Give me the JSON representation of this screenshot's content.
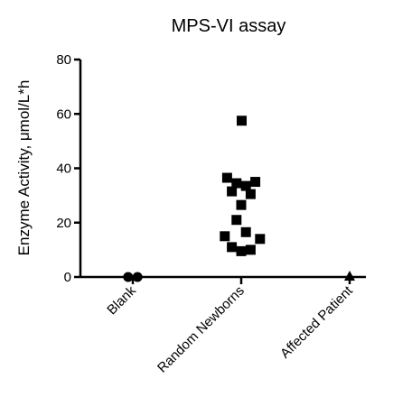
{
  "chart_data": {
    "type": "scatter",
    "title": "MPS-VI assay",
    "xlabel": "",
    "ylabel": "Enzyme Activity, μmol/L*h",
    "ylim": [
      0,
      80
    ],
    "yticks": [
      0,
      20,
      40,
      60,
      80
    ],
    "categories": [
      "Blank",
      "Random Newborns",
      "Affected Patient"
    ],
    "grid": false,
    "legend": "none",
    "series": [
      {
        "category": "Blank",
        "marker": "circle",
        "points": [
          {
            "x": -0.1,
            "y": 0
          },
          {
            "x": 0.1,
            "y": 0
          }
        ]
      },
      {
        "category": "Random Newborns",
        "marker": "square",
        "points": [
          {
            "x": 0.01,
            "y": 57.5
          },
          {
            "x": -0.3,
            "y": 36.5
          },
          {
            "x": -0.2,
            "y": 31.5
          },
          {
            "x": -0.1,
            "y": 34.5
          },
          {
            "x": 0.1,
            "y": 33.5
          },
          {
            "x": 0.2,
            "y": 30.5
          },
          {
            "x": 0.3,
            "y": 35
          },
          {
            "x": 0.0,
            "y": 26.5
          },
          {
            "x": -0.1,
            "y": 21
          },
          {
            "x": 0.1,
            "y": 16.5
          },
          {
            "x": -0.35,
            "y": 15
          },
          {
            "x": 0.4,
            "y": 14
          },
          {
            "x": -0.2,
            "y": 11
          },
          {
            "x": 0.0,
            "y": 9.5
          },
          {
            "x": 0.2,
            "y": 10
          }
        ]
      },
      {
        "category": "Affected Patient",
        "marker": "triangle",
        "points": [
          {
            "x": 0.0,
            "y": 0
          }
        ]
      }
    ],
    "colors": {
      "marker": "#000000",
      "axis": "#000000"
    }
  }
}
